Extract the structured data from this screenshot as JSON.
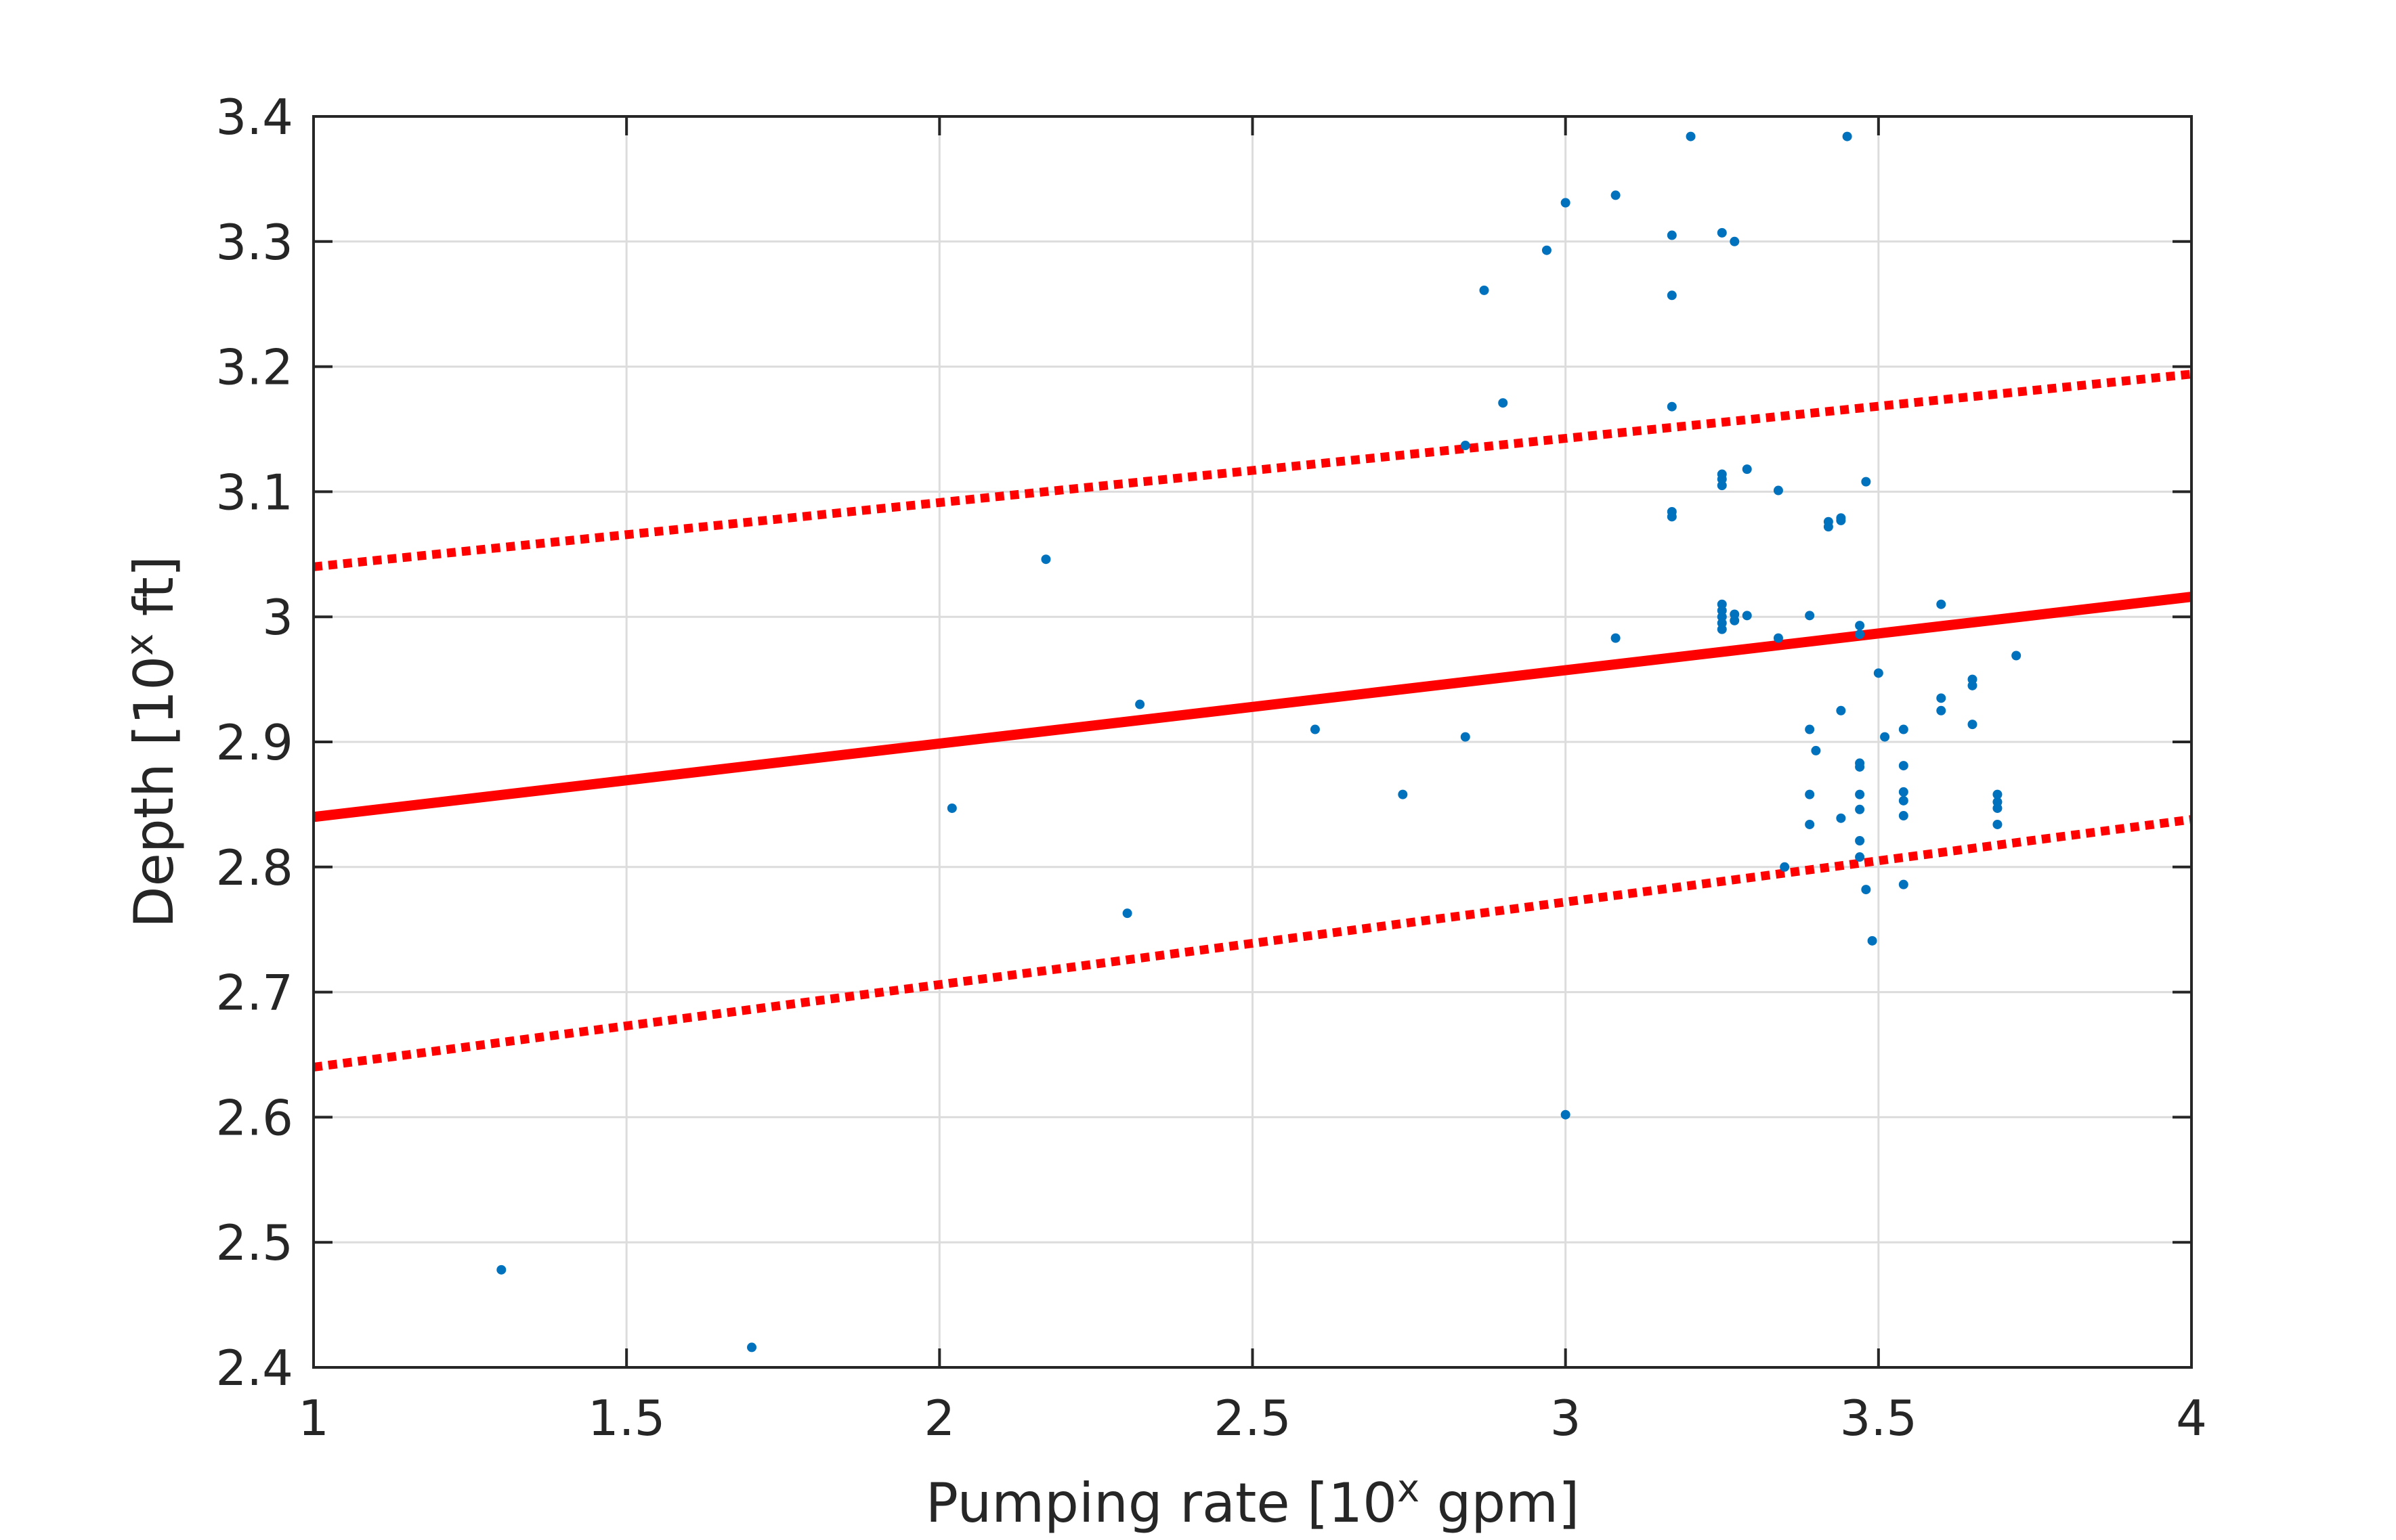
{
  "chart_data": {
    "type": "scatter",
    "title": "",
    "xlabel": {
      "prefix": "Pumping rate [10",
      "sup": "x",
      "suffix": " gpm]"
    },
    "ylabel": {
      "prefix": "Depth [10",
      "sup": "x",
      "suffix": " ft]"
    },
    "xlim": [
      1,
      4
    ],
    "ylim": [
      2.4,
      3.4
    ],
    "xticks": [
      "1",
      "1.5",
      "2",
      "2.5",
      "3",
      "3.5",
      "4"
    ],
    "yticks": [
      "2.4",
      "2.5",
      "2.6",
      "2.7",
      "2.8",
      "2.9",
      "3",
      "3.1",
      "3.2",
      "3.3",
      "3.4"
    ],
    "grid": true,
    "legend": "none",
    "colors": {
      "points": "#0072BD",
      "fit": "#FF0000",
      "axes": "#262626",
      "grid": "#DCDCDC"
    },
    "points": [
      [
        1.3,
        2.478
      ],
      [
        1.7,
        2.416
      ],
      [
        2.02,
        2.847
      ],
      [
        2.17,
        3.046
      ],
      [
        2.3,
        2.763
      ],
      [
        2.32,
        2.93
      ],
      [
        2.6,
        2.91
      ],
      [
        2.74,
        2.858
      ],
      [
        2.84,
        3.137
      ],
      [
        2.84,
        2.904
      ],
      [
        2.87,
        3.261
      ],
      [
        2.9,
        3.171
      ],
      [
        2.97,
        3.293
      ],
      [
        3.0,
        3.331
      ],
      [
        3.0,
        2.602
      ],
      [
        3.08,
        3.337
      ],
      [
        3.08,
        2.983
      ],
      [
        3.17,
        3.305
      ],
      [
        3.17,
        3.257
      ],
      [
        3.17,
        3.168
      ],
      [
        3.17,
        3.084
      ],
      [
        3.17,
        3.08
      ],
      [
        3.2,
        3.384
      ],
      [
        3.25,
        3.307
      ],
      [
        3.25,
        3.114
      ],
      [
        3.25,
        3.11
      ],
      [
        3.25,
        3.105
      ],
      [
        3.25,
        3.01
      ],
      [
        3.25,
        3.005
      ],
      [
        3.25,
        3.0
      ],
      [
        3.25,
        2.995
      ],
      [
        3.25,
        2.99
      ],
      [
        3.27,
        3.3
      ],
      [
        3.27,
        3.002
      ],
      [
        3.27,
        2.997
      ],
      [
        3.29,
        3.118
      ],
      [
        3.29,
        3.001
      ],
      [
        3.34,
        3.101
      ],
      [
        3.34,
        2.983
      ],
      [
        3.35,
        2.8
      ],
      [
        3.39,
        3.001
      ],
      [
        3.39,
        2.91
      ],
      [
        3.39,
        2.858
      ],
      [
        3.39,
        2.834
      ],
      [
        3.4,
        2.893
      ],
      [
        3.42,
        3.076
      ],
      [
        3.42,
        3.072
      ],
      [
        3.44,
        3.079
      ],
      [
        3.44,
        3.077
      ],
      [
        3.44,
        2.925
      ],
      [
        3.44,
        2.839
      ],
      [
        3.45,
        3.384
      ],
      [
        3.47,
        2.993
      ],
      [
        3.47,
        2.986
      ],
      [
        3.47,
        2.883
      ],
      [
        3.47,
        2.88
      ],
      [
        3.47,
        2.858
      ],
      [
        3.47,
        2.846
      ],
      [
        3.47,
        2.821
      ],
      [
        3.47,
        2.808
      ],
      [
        3.48,
        3.108
      ],
      [
        3.48,
        2.782
      ],
      [
        3.49,
        2.741
      ],
      [
        3.5,
        2.955
      ],
      [
        3.51,
        2.904
      ],
      [
        3.54,
        2.91
      ],
      [
        3.54,
        2.881
      ],
      [
        3.54,
        2.86
      ],
      [
        3.54,
        2.853
      ],
      [
        3.54,
        2.841
      ],
      [
        3.54,
        2.786
      ],
      [
        3.6,
        3.01
      ],
      [
        3.6,
        2.935
      ],
      [
        3.6,
        2.925
      ],
      [
        3.65,
        2.95
      ],
      [
        3.65,
        2.945
      ],
      [
        3.65,
        2.914
      ],
      [
        3.69,
        2.858
      ],
      [
        3.69,
        2.852
      ],
      [
        3.69,
        2.847
      ],
      [
        3.69,
        2.834
      ],
      [
        3.72,
        2.969
      ]
    ],
    "lines": [
      {
        "style": "solid",
        "x": [
          1,
          4
        ],
        "y": [
          2.84,
          3.016
        ]
      },
      {
        "style": "dotted",
        "x": [
          1,
          4
        ],
        "y": [
          3.04,
          3.194
        ]
      },
      {
        "style": "dotted",
        "x": [
          1,
          4
        ],
        "y": [
          2.64,
          2.838
        ]
      }
    ]
  }
}
